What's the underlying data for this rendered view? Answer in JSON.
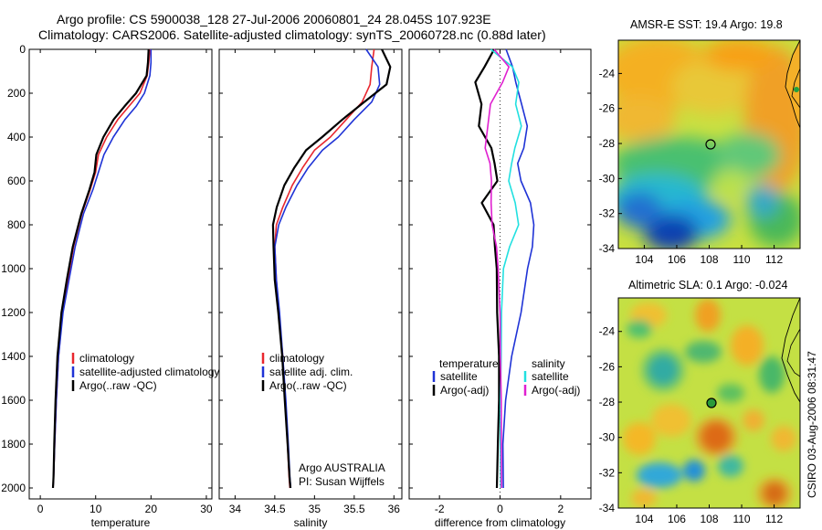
{
  "header": {
    "line1": "Argo profile: CS 5900038_128 27-Jul-2006 20060801_24 28.045S 107.923E",
    "line2": "Climatology: CARS2006. Satellite-adjusted climatology: synTS_20060728.nc (0.88d later)"
  },
  "footer_vertical": "CSIRO 03-Aug-2006 08:31:47",
  "colors": {
    "red": "#e8262e",
    "blue": "#1f33d6",
    "black": "#000000",
    "cyan": "#22e0e0",
    "magenta": "#e020d0"
  },
  "chart_data": [
    {
      "type": "line",
      "panel": "temperature",
      "xlabel": "temperature",
      "ylabel": "",
      "xlim": [
        -2,
        31
      ],
      "ylim": [
        2050,
        0
      ],
      "xticks": [
        0,
        10,
        20,
        30
      ],
      "yticks": [
        0,
        200,
        400,
        600,
        800,
        1000,
        1200,
        1400,
        1600,
        1800,
        2000
      ],
      "legend": [
        "climatology",
        "satellite-adjusted climatology",
        "Argo(..raw -QC)"
      ],
      "series": [
        {
          "name": "climatology",
          "color": "red",
          "x": [
            19.8,
            19.6,
            19.3,
            18,
            16,
            14,
            12,
            10.5,
            10,
            9,
            7.5,
            6,
            5,
            4,
            3.3,
            2.9,
            2.6,
            2.4,
            2.3
          ],
          "y": [
            0,
            60,
            120,
            200,
            260,
            320,
            400,
            480,
            560,
            640,
            750,
            900,
            1050,
            1200,
            1400,
            1600,
            1800,
            1950,
            2000
          ]
        },
        {
          "name": "satellite-adjusted climatology",
          "color": "blue",
          "x": [
            20,
            20,
            19.8,
            18.8,
            17.3,
            15.3,
            13.2,
            11.5,
            10.5,
            9.5,
            7.8,
            6.3,
            5.2,
            4.1,
            3.3,
            2.9,
            2.6,
            2.4,
            2.3
          ],
          "y": [
            0,
            60,
            120,
            200,
            260,
            320,
            400,
            480,
            560,
            640,
            750,
            900,
            1050,
            1200,
            1400,
            1600,
            1800,
            1950,
            2000
          ]
        },
        {
          "name": "Argo(..raw -QC)",
          "color": "black",
          "x": [
            19.6,
            19.4,
            19.1,
            17.2,
            15.2,
            13.3,
            11.5,
            10.2,
            9.8,
            8.8,
            7.3,
            5.8,
            4.8,
            3.9,
            3.2,
            2.8,
            2.5,
            2.3,
            2.2
          ],
          "y": [
            0,
            60,
            120,
            200,
            260,
            320,
            400,
            480,
            560,
            640,
            750,
            900,
            1050,
            1200,
            1400,
            1600,
            1800,
            1950,
            2000
          ]
        }
      ]
    },
    {
      "type": "line",
      "panel": "salinity",
      "xlabel": "salinity",
      "ylabel": "",
      "xlim": [
        33.8,
        36.1
      ],
      "ylim": [
        2050,
        0
      ],
      "xticks": [
        34,
        34.5,
        35,
        35.5,
        36
      ],
      "yticks": [
        0,
        200,
        400,
        600,
        800,
        1000,
        1200,
        1400,
        1600,
        1800,
        2000
      ],
      "legend": [
        "climatology",
        "satellite adj. clim.",
        "Argo(..raw -QC)"
      ],
      "annotation": [
        "Argo AUSTRALIA",
        "PI: Susan Wijffels"
      ],
      "series": [
        {
          "name": "climatology",
          "color": "red",
          "x": [
            35.75,
            35.72,
            35.7,
            35.6,
            35.4,
            35.2,
            35.0,
            34.85,
            34.72,
            34.6,
            34.52,
            34.5,
            34.52,
            34.55,
            34.6,
            34.63,
            34.66,
            34.68,
            34.69
          ],
          "y": [
            0,
            80,
            160,
            240,
            320,
            400,
            460,
            540,
            620,
            720,
            800,
            900,
            1050,
            1200,
            1400,
            1600,
            1800,
            1950,
            2000
          ]
        },
        {
          "name": "satellite adj. clim.",
          "color": "blue",
          "x": [
            35.65,
            35.8,
            35.82,
            35.72,
            35.5,
            35.3,
            35.1,
            34.92,
            34.78,
            34.64,
            34.55,
            34.5,
            34.52,
            34.56,
            34.6,
            34.64,
            34.67,
            34.69,
            34.7
          ],
          "y": [
            0,
            80,
            160,
            240,
            320,
            400,
            460,
            540,
            620,
            720,
            800,
            900,
            1050,
            1200,
            1400,
            1600,
            1800,
            1950,
            2000
          ]
        },
        {
          "name": "Argo(..raw -QC)",
          "color": "black",
          "x": [
            35.85,
            35.95,
            35.9,
            35.62,
            35.35,
            35.1,
            34.9,
            34.75,
            34.62,
            34.52,
            34.47,
            34.48,
            34.5,
            34.55,
            34.6,
            34.63,
            34.66,
            34.68,
            34.69
          ],
          "y": [
            0,
            80,
            160,
            240,
            320,
            400,
            460,
            540,
            620,
            720,
            800,
            900,
            1050,
            1200,
            1400,
            1600,
            1800,
            1950,
            2000
          ]
        }
      ]
    },
    {
      "type": "line",
      "panel": "difference",
      "xlabel": "difference from climatology",
      "ylabel": "",
      "xlim": [
        -3,
        3
      ],
      "ylim": [
        2050,
        0
      ],
      "xticks": [
        -2,
        0,
        2
      ],
      "yticks": [
        0,
        200,
        400,
        600,
        800,
        1000,
        1200,
        1400,
        1600,
        1800,
        2000
      ],
      "legend_left_title": "temperature",
      "legend_right_title": "salinity",
      "legend_left": [
        "satellite",
        "Argo(-adj)"
      ],
      "legend_right": [
        "satellite",
        "Argo(-adj)"
      ],
      "series": [
        {
          "name": "temperature satellite",
          "color": "blue",
          "x": [
            0.2,
            0.4,
            0.5,
            0.7,
            0.9,
            0.8,
            0.6,
            0.7,
            1.0,
            1.1,
            1.05,
            0.9,
            0.7,
            0.4,
            0.2,
            0.1,
            0.1
          ],
          "y": [
            0,
            80,
            150,
            250,
            350,
            450,
            520,
            600,
            700,
            800,
            900,
            1000,
            1200,
            1400,
            1600,
            1800,
            2000
          ]
        },
        {
          "name": "temperature Argo(-adj)",
          "color": "black",
          "x": [
            -0.2,
            -0.5,
            -0.8,
            -0.6,
            -0.7,
            -0.3,
            -0.2,
            -0.1,
            -0.6,
            -0.2,
            -0.15,
            -0.1,
            -0.1,
            -0.05,
            -0.05,
            -0.08,
            -0.1
          ],
          "y": [
            0,
            80,
            150,
            250,
            350,
            450,
            520,
            600,
            700,
            800,
            900,
            1000,
            1200,
            1400,
            1600,
            1800,
            2000
          ]
        },
        {
          "name": "salinity satellite",
          "color": "cyan",
          "x": [
            -0.3,
            0.4,
            0.6,
            0.5,
            0.7,
            0.5,
            0.4,
            0.3,
            0.5,
            0.6,
            0.3,
            0.1,
            0.05,
            0.05,
            0.03,
            0.02,
            0.02
          ],
          "y": [
            0,
            80,
            150,
            250,
            350,
            450,
            520,
            600,
            700,
            800,
            900,
            1000,
            1200,
            1400,
            1600,
            1800,
            2000
          ]
        },
        {
          "name": "salinity Argo(-adj)",
          "color": "magenta",
          "x": [
            -0.2,
            0.3,
            0.1,
            -0.3,
            -0.4,
            -0.5,
            -0.35,
            -0.3,
            -0.3,
            -0.25,
            -0.1,
            -0.05,
            0.0,
            0.0,
            0.02,
            0.03,
            0.05
          ],
          "y": [
            0,
            80,
            150,
            250,
            350,
            450,
            520,
            600,
            700,
            800,
            900,
            1000,
            1200,
            1400,
            1600,
            1800,
            2000
          ]
        }
      ]
    },
    {
      "type": "heatmap",
      "panel": "sst_map",
      "title": "AMSR-E SST: 19.4 Argo: 19.8",
      "xticks": [
        104,
        106,
        108,
        110,
        112
      ],
      "yticks": [
        -24,
        -26,
        -28,
        -30,
        -32,
        -34
      ],
      "xlim": [
        102.4,
        113.6
      ],
      "ylim": [
        -34,
        -22.1
      ],
      "marker": {
        "lon": 107.923,
        "lat": -28.045
      }
    },
    {
      "type": "heatmap",
      "panel": "sla_map",
      "title": "Altimetric SLA: 0.1 Argo: -0.024",
      "xticks": [
        104,
        106,
        108,
        110,
        112
      ],
      "yticks": [
        -24,
        -26,
        -28,
        -30,
        -32,
        -34
      ],
      "xlim": [
        102.4,
        113.6
      ],
      "ylim": [
        -34,
        -22.1
      ],
      "marker": {
        "lon": 107.923,
        "lat": -28.045
      }
    }
  ]
}
